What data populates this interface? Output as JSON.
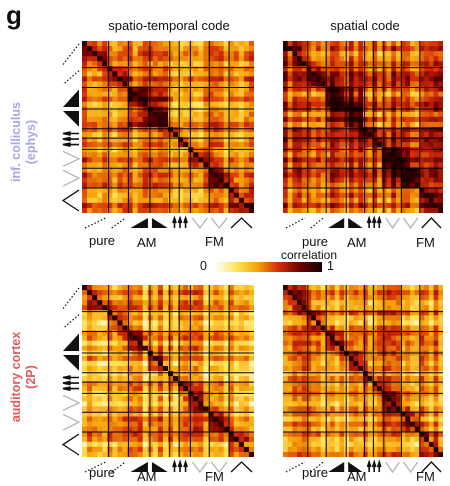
{
  "panel_letter": "g",
  "colors": {
    "inferior_colliculus_label": "#a8a6e6",
    "auditory_cortex_label": "#e05a5a",
    "colormap": [
      "#ffffff",
      "#ffe45a",
      "#f5a20a",
      "#d22c08",
      "#6e0000",
      "#1a0000"
    ],
    "diagonal": "#2a0000",
    "block_boundaries": "#000000",
    "axis_icon": "#111111",
    "axis_icon_faint": "#b3b3b3"
  },
  "column_titles": [
    "spatio-temporal code",
    "spatial code"
  ],
  "row_labels": [
    [
      "inf. colliculus",
      "(ephys)"
    ],
    [
      "auditory cortex",
      "(2P)"
    ]
  ],
  "group_labels": [
    "pure",
    "AM",
    "FM"
  ],
  "colorbar": {
    "title": "correlation",
    "min_label": "0",
    "max_label": "1"
  },
  "axis_icons": [
    "dotted-ramp-icon",
    "up-ramp-icon",
    "down-ramp-icon",
    "triple-tone-icon",
    "chevron-icon",
    "wave-icon"
  ],
  "chart_data": {
    "type": "heatmap",
    "title": "",
    "value_range": [
      0,
      1
    ],
    "colorbar_label": "correlation",
    "stimulus_groups": [
      "pure",
      "AM",
      "FM"
    ],
    "panels": [
      {
        "row": "inf. colliculus (ephys)",
        "column": "spatio-temporal code",
        "diagonal": 1,
        "mean_off_diagonal": 0.48
      },
      {
        "row": "inf. colliculus (ephys)",
        "column": "spatial code",
        "diagonal": 1,
        "mean_off_diagonal": 0.55
      },
      {
        "row": "auditory cortex (2P)",
        "column": "spatio-temporal code",
        "diagonal": 1,
        "mean_off_diagonal": 0.38
      },
      {
        "row": "auditory cortex (2P)",
        "column": "spatial code",
        "diagonal": 1,
        "mean_off_diagonal": 0.4
      }
    ]
  }
}
